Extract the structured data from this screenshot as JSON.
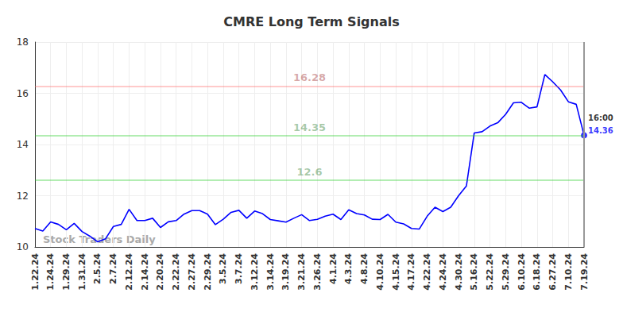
{
  "chart_data": {
    "type": "line",
    "title": "CMRE Long Term Signals",
    "categories": [
      "1.22.24",
      null,
      "1.24.24",
      null,
      "1.29.24",
      null,
      "1.31.24",
      null,
      "2.5.24",
      null,
      "2.7.24",
      null,
      "2.12.24",
      null,
      "2.14.24",
      null,
      "2.20.24",
      null,
      "2.22.24",
      null,
      "2.27.24",
      null,
      "2.29.24",
      null,
      "3.5.24",
      null,
      "3.7.24",
      null,
      "3.12.24",
      null,
      "3.14.24",
      null,
      "3.19.24",
      null,
      "3.21.24",
      null,
      "3.26.24",
      null,
      "4.1.24",
      null,
      "4.3.24",
      null,
      "4.8.24",
      null,
      "4.10.24",
      null,
      "4.15.24",
      null,
      "4.17.24",
      null,
      "4.22.24",
      null,
      "4.24.24",
      null,
      "4.30.24",
      null,
      "5.16.24",
      null,
      "5.22.24",
      null,
      "5.29.24",
      null,
      "6.10.24",
      null,
      "6.18.24",
      null,
      "6.27.24",
      null,
      "7.10.24",
      null,
      "7.19.24"
    ],
    "values": [
      10.72,
      10.62,
      10.98,
      10.88,
      10.67,
      10.92,
      10.6,
      10.42,
      10.2,
      10.32,
      10.8,
      10.88,
      11.47,
      11.03,
      11.03,
      11.12,
      10.76,
      10.98,
      11.03,
      11.28,
      11.42,
      11.42,
      11.28,
      10.87,
      11.08,
      11.35,
      11.43,
      11.12,
      11.4,
      11.3,
      11.07,
      11.02,
      10.97,
      11.12,
      11.26,
      11.03,
      11.08,
      11.2,
      11.28,
      11.07,
      11.45,
      11.3,
      11.25,
      11.08,
      11.07,
      11.27,
      10.97,
      10.9,
      10.72,
      10.7,
      11.2,
      11.55,
      11.38,
      11.55,
      12.0,
      12.38,
      14.45,
      14.5,
      14.72,
      14.85,
      15.18,
      15.63,
      15.65,
      15.42,
      15.47,
      16.73,
      16.45,
      16.13,
      15.67,
      15.57,
      14.36
    ],
    "color": "#0000ff",
    "ylim": [
      10,
      18
    ],
    "yticks": [
      10,
      12,
      14,
      16,
      18
    ],
    "grid": true,
    "levels": [
      {
        "value": 16.28,
        "color": "#8b0000"
      },
      {
        "value": 14.35,
        "color": "#006400"
      },
      {
        "value": 12.6,
        "color": "#006400"
      }
    ],
    "last_point_label": "16:00",
    "watermark": "Stock Traders Daily"
  }
}
